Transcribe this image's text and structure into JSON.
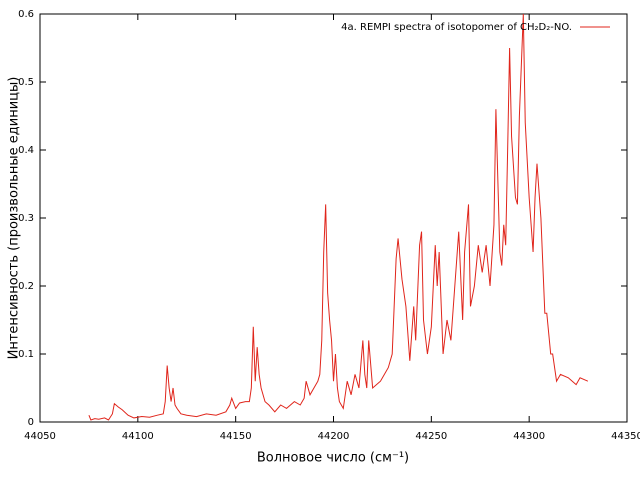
{
  "chart_data": {
    "type": "line",
    "xlabel": "Волновое число (см⁻¹)",
    "ylabel": "Интенсивность (произвольные единицы)",
    "xlim": [
      44050,
      44350
    ],
    "xticks": [
      44050,
      44100,
      44150,
      44200,
      44250,
      44300,
      44350
    ],
    "ylim": [
      0,
      0.6
    ],
    "yticks": [
      0,
      0.1,
      0.2,
      0.3,
      0.4,
      0.5,
      0.6
    ],
    "legend": "top-right",
    "series": [
      {
        "name": "4a. REMPI spectra of isotopomer of CH₂D₂-NO.",
        "color": "#e0251b",
        "x": [
          44075,
          44076,
          44078,
          44080,
          44083,
          44085,
          44087,
          44088,
          44090,
          44092,
          44095,
          44098,
          44102,
          44106,
          44110,
          44113,
          44114,
          44115,
          44116,
          44117,
          44118,
          44119,
          44120,
          44122,
          44125,
          44130,
          44135,
          44140,
          44145,
          44147,
          44148,
          44150,
          44152,
          44155,
          44157,
          44158,
          44159,
          44160,
          44161,
          44162,
          44163,
          44165,
          44167,
          44170,
          44173,
          44176,
          44180,
          44183,
          44185,
          44186,
          44188,
          44190,
          44192,
          44193,
          44194,
          44195,
          44196,
          44197,
          44198,
          44199,
          44200,
          44201,
          44202,
          44203,
          44205,
          44207,
          44209,
          44211,
          44213,
          44215,
          44216,
          44217,
          44218,
          44220,
          44224,
          44228,
          44230,
          44232,
          44233,
          44235,
          44237,
          44239,
          44241,
          44242,
          44244,
          44245,
          44246,
          44248,
          44250,
          44252,
          44253,
          44254,
          44256,
          44258,
          44260,
          44262,
          44264,
          44266,
          44267,
          44269,
          44270,
          44272,
          44274,
          44276,
          44278,
          44280,
          44282,
          44283,
          44285,
          44286,
          44287,
          44288,
          44289,
          44290,
          44291,
          44293,
          44294,
          44295,
          44297,
          44298,
          44300,
          44302,
          44303,
          44304,
          44306,
          44308,
          44309,
          44311,
          44312,
          44314,
          44316,
          44320,
          44324,
          44326,
          44330
        ],
        "values": [
          0.01,
          0.003,
          0.005,
          0.004,
          0.006,
          0.003,
          0.012,
          0.027,
          0.022,
          0.018,
          0.01,
          0.006,
          0.008,
          0.007,
          0.01,
          0.012,
          0.03,
          0.083,
          0.05,
          0.03,
          0.05,
          0.025,
          0.02,
          0.012,
          0.01,
          0.008,
          0.012,
          0.01,
          0.015,
          0.025,
          0.035,
          0.02,
          0.028,
          0.03,
          0.03,
          0.05,
          0.14,
          0.06,
          0.11,
          0.07,
          0.05,
          0.03,
          0.025,
          0.015,
          0.025,
          0.02,
          0.03,
          0.025,
          0.035,
          0.06,
          0.04,
          0.05,
          0.06,
          0.07,
          0.12,
          0.25,
          0.32,
          0.19,
          0.15,
          0.12,
          0.06,
          0.1,
          0.05,
          0.03,
          0.02,
          0.06,
          0.04,
          0.07,
          0.05,
          0.12,
          0.07,
          0.05,
          0.12,
          0.05,
          0.06,
          0.08,
          0.1,
          0.24,
          0.27,
          0.21,
          0.17,
          0.09,
          0.17,
          0.12,
          0.26,
          0.28,
          0.15,
          0.1,
          0.14,
          0.26,
          0.2,
          0.25,
          0.1,
          0.15,
          0.12,
          0.2,
          0.28,
          0.15,
          0.25,
          0.32,
          0.17,
          0.2,
          0.26,
          0.22,
          0.26,
          0.2,
          0.29,
          0.46,
          0.25,
          0.23,
          0.29,
          0.26,
          0.4,
          0.55,
          0.42,
          0.33,
          0.32,
          0.45,
          0.6,
          0.44,
          0.33,
          0.25,
          0.33,
          0.38,
          0.3,
          0.16,
          0.16,
          0.1,
          0.1,
          0.06,
          0.07,
          0.065,
          0.055,
          0.065,
          0.06
        ]
      }
    ]
  }
}
